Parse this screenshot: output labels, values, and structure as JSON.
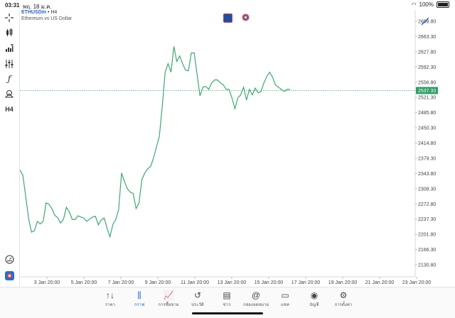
{
  "status": {
    "time": "03:31",
    "date": "พฤ. 18 ม.ค.",
    "battery": "100%"
  },
  "chart_header": {
    "symbol": "ETHUSDm",
    "timeframe": "• H4",
    "description": "Ethereum vs US Dollar"
  },
  "toolbar_icons": [
    "crosshair-icon",
    "candles-icon",
    "indicators-icon",
    "settings-sliders-icon",
    "function-icon",
    "objects-icon",
    "h4-timeframe"
  ],
  "toolbar_h4_label": "H4",
  "chart_data": {
    "type": "line",
    "color": "#3aaa6e",
    "current_price": "2537.33",
    "ylim": [
      2110,
      2715
    ],
    "y_ticks": [
      "2698.80",
      "2663.30",
      "2627.80",
      "2592.30",
      "2556.80",
      "2521.30",
      "2485.80",
      "2450.30",
      "2414.80",
      "2379.30",
      "2343.80",
      "2308.30",
      "2272.80",
      "2237.30",
      "2201.80",
      "2166.30",
      "2130.80"
    ],
    "x_ticks": [
      "3 Jan 20:00",
      "5 Jan 20:00",
      "7 Jan 20:00",
      "9 Jan 20:00",
      "11 Jan 20:00",
      "13 Jan 20:00",
      "15 Jan 20:00",
      "17 Jan 20:00",
      "19 Jan 20:00",
      "21 Jan 20:00",
      "23 Jan 20:00"
    ],
    "values": [
      2352,
      2340,
      2290,
      2238,
      2207,
      2210,
      2232,
      2226,
      2232,
      2275,
      2272,
      2262,
      2246,
      2241,
      2228,
      2237,
      2265,
      2254,
      2237,
      2236,
      2245,
      2242,
      2240,
      2232,
      2238,
      2242,
      2244,
      2224,
      2235,
      2240,
      2216,
      2196,
      2225,
      2236,
      2260,
      2345,
      2325,
      2308,
      2300,
      2297,
      2262,
      2275,
      2330,
      2345,
      2355,
      2360,
      2380,
      2405,
      2430,
      2500,
      2580,
      2600,
      2580,
      2640,
      2605,
      2618,
      2600,
      2585,
      2583,
      2625,
      2625,
      2575,
      2525,
      2545,
      2547,
      2540,
      2555,
      2562,
      2562,
      2555,
      2551,
      2540,
      2540,
      2520,
      2495,
      2520,
      2527,
      2545,
      2515,
      2540,
      2527,
      2543,
      2532,
      2535,
      2555,
      2570,
      2580,
      2568,
      2550,
      2545,
      2540,
      2535,
      2540,
      2540
    ]
  },
  "tabs": [
    {
      "label": "ราคา",
      "icon": "↑↓",
      "active": false
    },
    {
      "label": "กราฟ",
      "icon": "⫼",
      "active": true
    },
    {
      "label": "การซื้อขาย",
      "icon": "📈",
      "active": false
    },
    {
      "label": "ประวัติ",
      "icon": "↺",
      "active": false
    },
    {
      "label": "ข่าว",
      "icon": "▤",
      "active": false
    },
    {
      "label": "กล่องจดหมาย",
      "icon": "@",
      "active": false
    },
    {
      "label": "แชท",
      "icon": "▭",
      "active": false
    },
    {
      "label": "บัญชี",
      "icon": "◉",
      "active": false
    },
    {
      "label": "การตั้งค่า",
      "icon": "⚙",
      "active": false
    }
  ]
}
